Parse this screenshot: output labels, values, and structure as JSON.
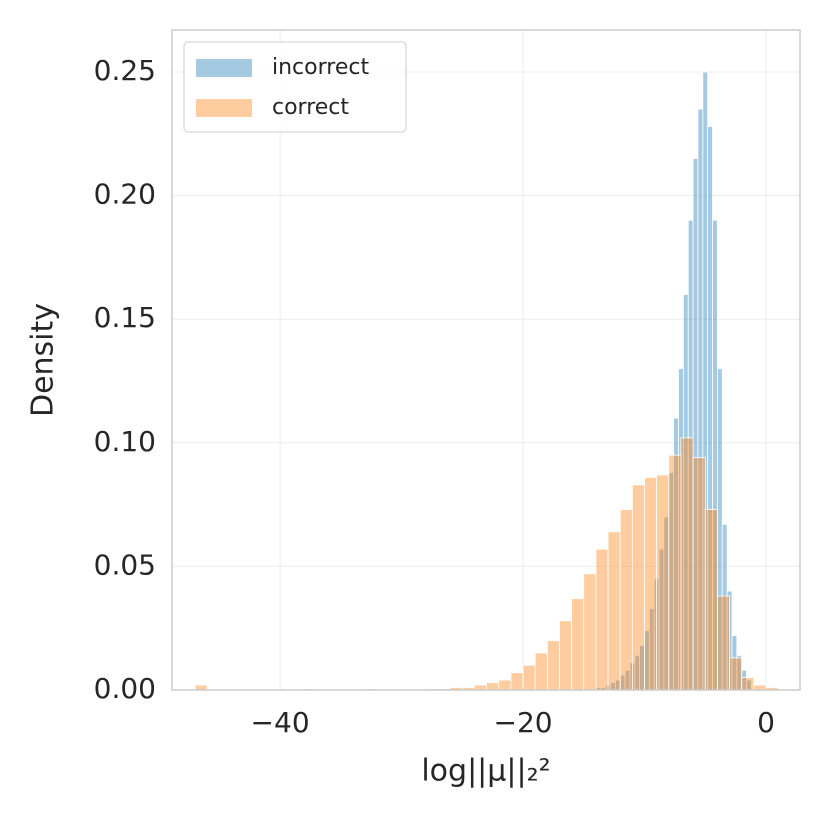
{
  "chart_data": {
    "type": "histogram",
    "xlabel": "log||μ||₂²",
    "ylabel": "Density",
    "xlim": [
      -48.9,
      2.8
    ],
    "ylim": [
      0,
      0.267
    ],
    "xticks": [
      {
        "value": -40,
        "label": "−40"
      },
      {
        "value": -20,
        "label": "−20"
      },
      0
    ],
    "yticks": [
      {
        "value": 0,
        "label": "0.00"
      },
      {
        "value": 0.05,
        "label": "0.05"
      },
      {
        "value": 0.1,
        "label": "0.10"
      },
      {
        "value": 0.15,
        "label": "0.15"
      },
      {
        "value": 0.2,
        "label": "0.20"
      },
      {
        "value": 0.25,
        "label": "0.25"
      }
    ],
    "grid": true,
    "legend": "upper left",
    "opacity": 0.4,
    "series": [
      {
        "name": "incorrect",
        "color": "#1f77b4",
        "bins": [
          -14,
          -13.6,
          -13.2,
          -12.8,
          -12.4,
          -12,
          -11.6,
          -11.2,
          -10.8,
          -10.4,
          -10,
          -9.6,
          -9.2,
          -8.8,
          -8.4,
          -8,
          -7.6,
          -7.2,
          -6.8,
          -6.4,
          -6,
          -5.6,
          -5.2,
          -4.8,
          -4.4,
          -4,
          -3.6,
          -3.2,
          -2.8,
          -2.4,
          -2,
          -1.6,
          -1.2
        ],
        "values": [
          0.001,
          0.001,
          0.002,
          0.003,
          0.004,
          0.006,
          0.008,
          0.011,
          0.014,
          0.018,
          0.024,
          0.033,
          0.045,
          0.057,
          0.07,
          0.088,
          0.11,
          0.13,
          0.16,
          0.19,
          0.215,
          0.235,
          0.25,
          0.228,
          0.19,
          0.13,
          0.067,
          0.04,
          0.022,
          0.014,
          0.008,
          0.004
        ]
      },
      {
        "name": "correct",
        "color": "#ff7f0e",
        "bins": [
          -47,
          -46,
          -45,
          -44,
          -43,
          -42,
          -41,
          -40,
          -39,
          -38,
          -37,
          -36,
          -35,
          -34,
          -33,
          -32,
          -31,
          -30,
          -29,
          -28,
          -27,
          -26,
          -25,
          -24,
          -23,
          -22,
          -21,
          -20,
          -19,
          -18,
          -17,
          -16,
          -15,
          -14,
          -13,
          -12,
          -11,
          -10,
          -9,
          -8,
          -7,
          -6,
          -5,
          -4,
          -3,
          -2,
          -1,
          0,
          1
        ],
        "values": [
          0.002,
          0,
          0,
          0,
          0,
          0,
          0,
          0,
          0,
          0.0005,
          0,
          0,
          0,
          0,
          0.0005,
          0,
          0,
          0,
          0,
          0.0005,
          0.0005,
          0.001,
          0.001,
          0.002,
          0.003,
          0.004,
          0.007,
          0.01,
          0.015,
          0.02,
          0.028,
          0.037,
          0.047,
          0.057,
          0.064,
          0.073,
          0.083,
          0.086,
          0.087,
          0.095,
          0.102,
          0.094,
          0.073,
          0.038,
          0.013,
          0.005,
          0.002,
          0.001
        ]
      }
    ]
  }
}
